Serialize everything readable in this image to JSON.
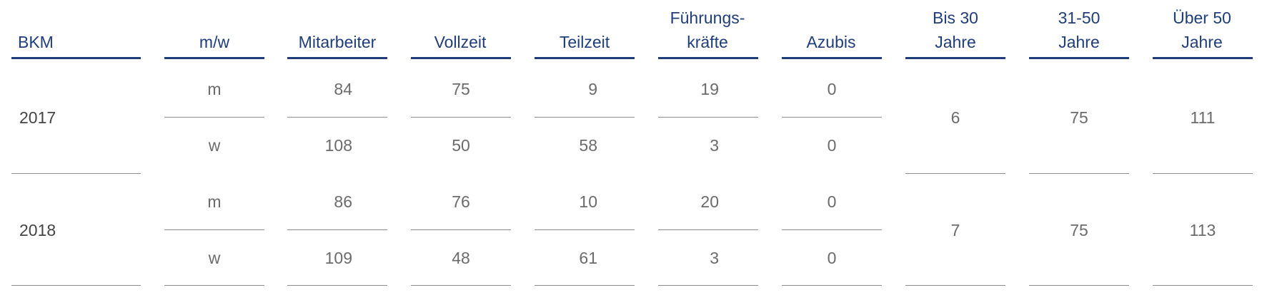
{
  "headers": {
    "bkm": "BKM",
    "mw": "m/w",
    "mitarbeiter": "Mitarbeiter",
    "vollzeit": "Vollzeit",
    "teilzeit": "Teilzeit",
    "fuehrung_1": "Führungs-",
    "fuehrung_2": "kräfte",
    "azubis": "Azubis",
    "bis30_1": "Bis 30",
    "bis30_2": "Jahre",
    "mid_1": "31-50",
    "mid_2": "Jahre",
    "ueber50_1": "Über 50",
    "ueber50_2": "Jahre"
  },
  "rows": [
    {
      "year": "2017",
      "m": {
        "label": "m",
        "mitarbeiter": "84",
        "vollzeit": "75",
        "teilzeit": "9",
        "fuehrung": "19",
        "azubis": "0"
      },
      "w": {
        "label": "w",
        "mitarbeiter": "108",
        "vollzeit": "50",
        "teilzeit": "58",
        "fuehrung": "3",
        "azubis": "0"
      },
      "bis30": "6",
      "mid": "75",
      "ueber50": "111"
    },
    {
      "year": "2018",
      "m": {
        "label": "m",
        "mitarbeiter": "86",
        "vollzeit": "76",
        "teilzeit": "10",
        "fuehrung": "20",
        "azubis": "0"
      },
      "w": {
        "label": "w",
        "mitarbeiter": "109",
        "vollzeit": "48",
        "teilzeit": "61",
        "fuehrung": "3",
        "azubis": "0"
      },
      "bis30": "7",
      "mid": "75",
      "ueber50": "113"
    }
  ],
  "colors": {
    "header": "#1f3d7a",
    "text": "#6b6b6b",
    "year": "#444444",
    "rule": "#8c8c8c"
  }
}
